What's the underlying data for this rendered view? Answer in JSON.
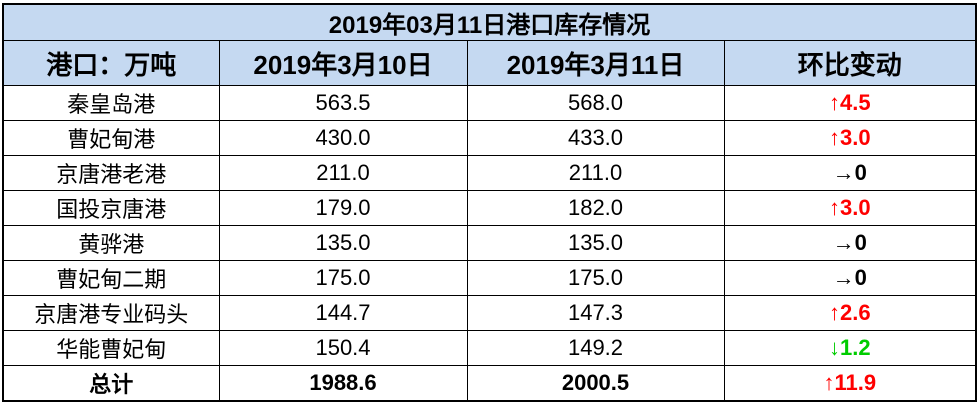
{
  "table": {
    "title": "2019年03月11日港口库存情况",
    "header": [
      "港口：万吨",
      "2019年3月10日",
      "2019年3月11日",
      "环比变动"
    ],
    "rows": [
      [
        "秦皇岛港",
        "563.5",
        "568.0",
        "↑4.5"
      ],
      [
        "曹妃甸港",
        "430.0",
        "433.0",
        "↑3.0"
      ],
      [
        "京唐港老港",
        "211.0",
        "211.0",
        "→0"
      ],
      [
        "国投京唐港",
        "179.0",
        "182.0",
        "↑3.0"
      ],
      [
        "黄骅港",
        "135.0",
        "135.0",
        "→0"
      ],
      [
        "曹妃甸二期",
        "175.0",
        "175.0",
        "→0"
      ],
      [
        "京唐港专业码头",
        "144.7",
        "147.3",
        "↑2.6"
      ],
      [
        "华能曹妃甸",
        "150.4",
        "149.2",
        "↓1.2"
      ]
    ],
    "total": [
      "总计",
      "1988.6",
      "2000.5",
      "↑11.9"
    ]
  }
}
